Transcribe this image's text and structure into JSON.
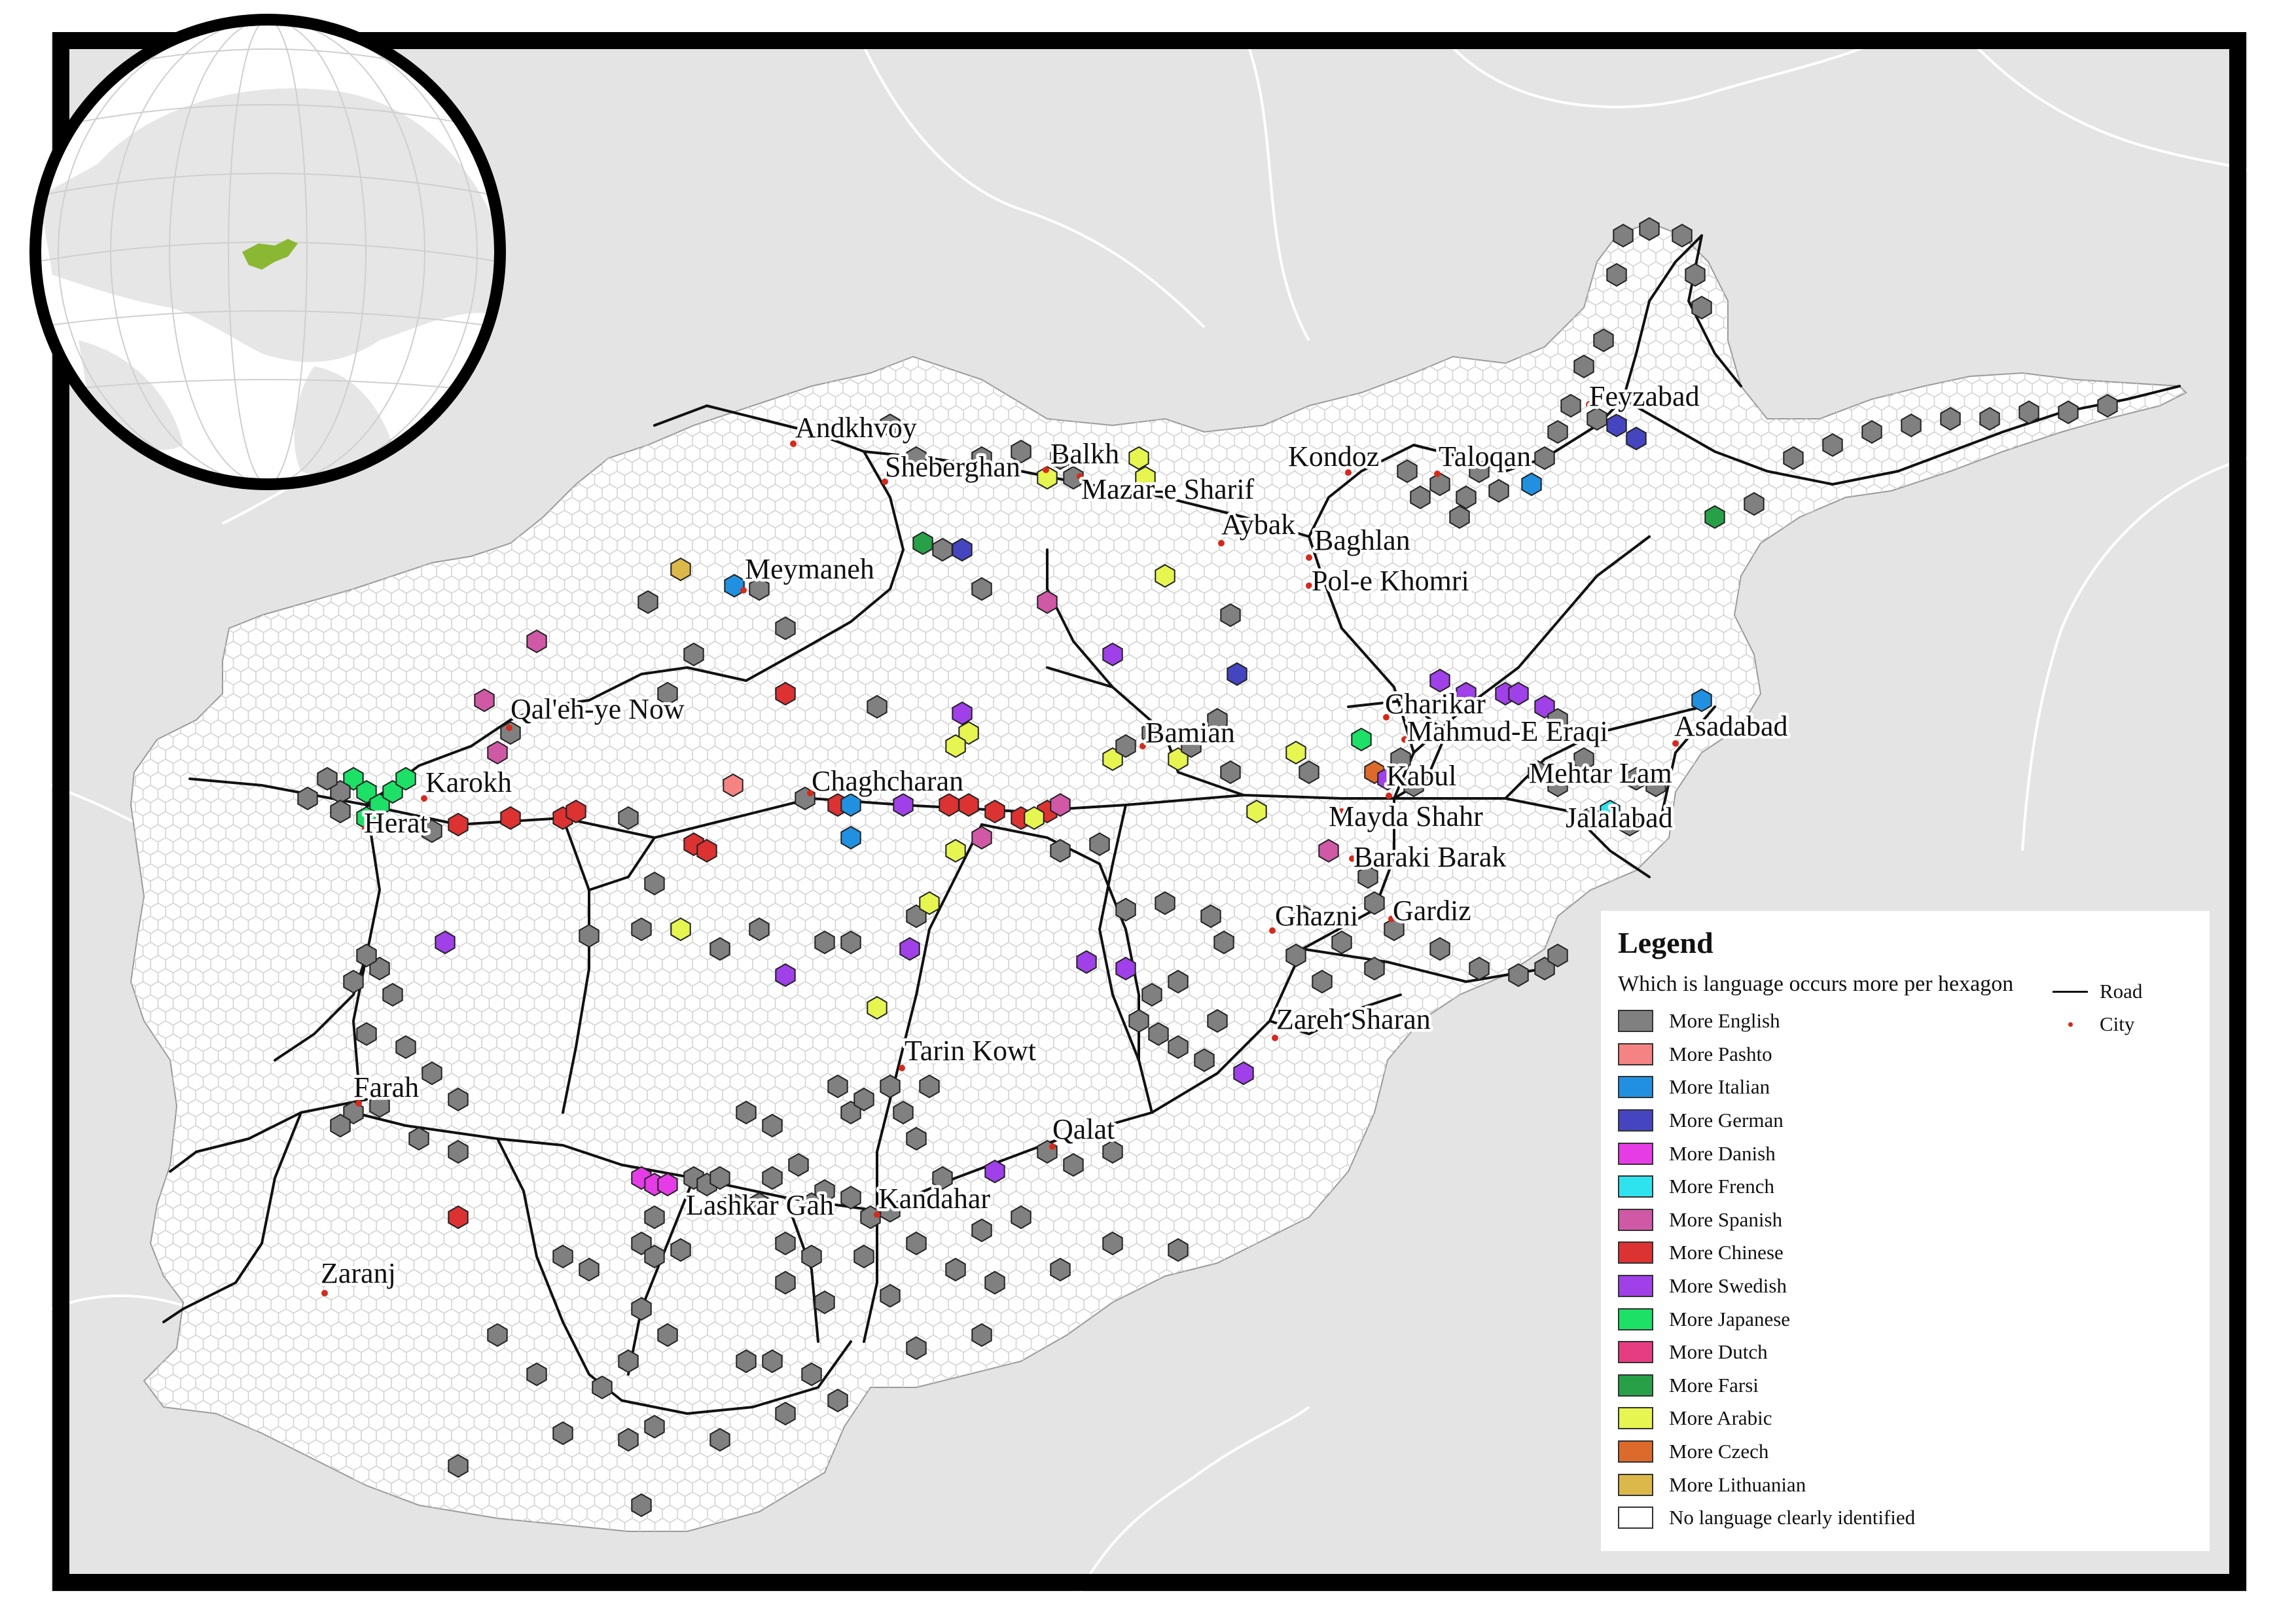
{
  "legend": {
    "title": "Legend",
    "subtitle": "Which is language occurs more per hexagon",
    "items": [
      {
        "label": "More English",
        "color": "#808080"
      },
      {
        "label": "More Pashto",
        "color": "#f58383"
      },
      {
        "label": "More Italian",
        "color": "#2190e0"
      },
      {
        "label": "More German",
        "color": "#4545c0"
      },
      {
        "label": "More Danish",
        "color": "#e63ce6"
      },
      {
        "label": "More French",
        "color": "#2ee3ee"
      },
      {
        "label": "More Spanish",
        "color": "#d059a6"
      },
      {
        "label": "More Chinese",
        "color": "#dc3232"
      },
      {
        "label": "More Swedish",
        "color": "#a040e8"
      },
      {
        "label": "More Japanese",
        "color": "#1de066"
      },
      {
        "label": "More Dutch",
        "color": "#e63c82"
      },
      {
        "label": "More Farsi",
        "color": "#28a048"
      },
      {
        "label": "More Arabic",
        "color": "#e6f550"
      },
      {
        "label": "More Czech",
        "color": "#dc6a2a"
      },
      {
        "label": "More Lithuanian",
        "color": "#dcb84a"
      },
      {
        "label": "No language clearly identified",
        "color": "#ffffff"
      }
    ],
    "road_label": "Road",
    "city_label": "City"
  },
  "cities": [
    {
      "name": "Andkhvoy"
    },
    {
      "name": "Sheberghan"
    },
    {
      "name": "Balkh"
    },
    {
      "name": "Mazar-e Sharif"
    },
    {
      "name": "Kondoz"
    },
    {
      "name": "Taloqan"
    },
    {
      "name": "Feyzabad"
    },
    {
      "name": "Aybak"
    },
    {
      "name": "Baghlan"
    },
    {
      "name": "Pol-e Khomri"
    },
    {
      "name": "Meymaneh"
    },
    {
      "name": "Qal'eh-ye Now"
    },
    {
      "name": "Karokh"
    },
    {
      "name": "Herat"
    },
    {
      "name": "Chaghcharan"
    },
    {
      "name": "Bamian"
    },
    {
      "name": "Charikar"
    },
    {
      "name": "Mahmud-E Eraqi"
    },
    {
      "name": "Asadabad"
    },
    {
      "name": "Kabul"
    },
    {
      "name": "Mehtar Lam"
    },
    {
      "name": "Mayda Shahr"
    },
    {
      "name": "Jalalabad"
    },
    {
      "name": "Baraki Barak"
    },
    {
      "name": "Ghazni"
    },
    {
      "name": "Gardiz"
    },
    {
      "name": "Zareh Sharan"
    },
    {
      "name": "Tarin Kowt"
    },
    {
      "name": "Farah"
    },
    {
      "name": "Qalat"
    },
    {
      "name": "Lashkar Gah"
    },
    {
      "name": "Kandahar"
    },
    {
      "name": "Zaranj"
    }
  ],
  "map_colors": {
    "background": "#e4e4e4",
    "country_fill": "#ffffff",
    "globe_highlight": "#8ab833",
    "frame": "#000000",
    "city_dot": "#d42a1e"
  }
}
